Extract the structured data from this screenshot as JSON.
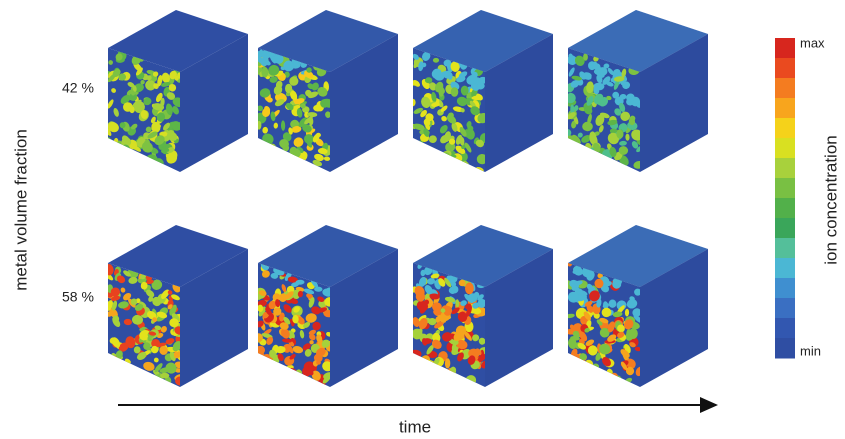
{
  "row_labels": [
    "42 %",
    "58 %"
  ],
  "y_axis_label": "metal volume fraction",
  "x_axis_label": "time",
  "colorbar": {
    "label": "ion concentration",
    "max_label": "max",
    "min_label": "min"
  }
}
